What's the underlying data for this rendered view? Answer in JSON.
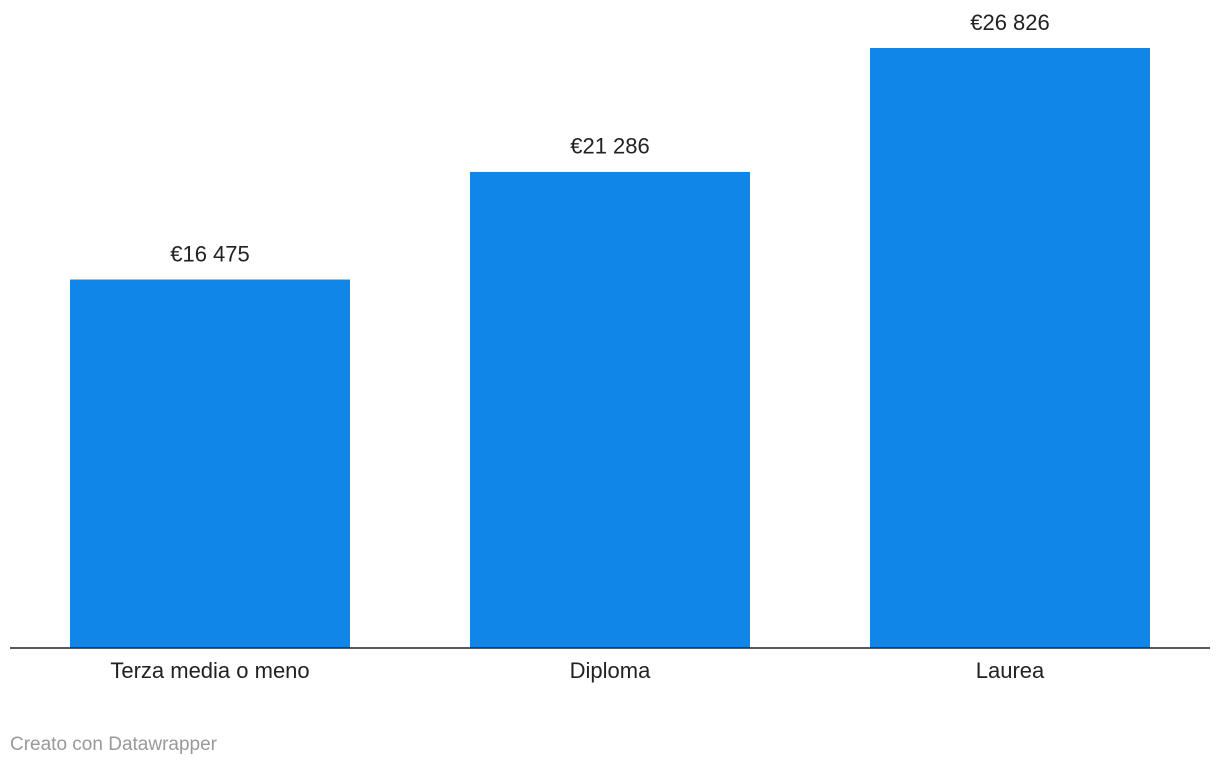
{
  "chart_data": {
    "type": "bar",
    "categories": [
      "Terza media o meno",
      "Diploma",
      "Laurea"
    ],
    "values": [
      16475,
      21286,
      26826
    ],
    "value_labels": [
      "€16 475",
      "€21 286",
      "€26 826"
    ],
    "color": "#1087e8",
    "ylim": [
      0,
      26826
    ]
  },
  "credit": "Creato con Datawrapper"
}
